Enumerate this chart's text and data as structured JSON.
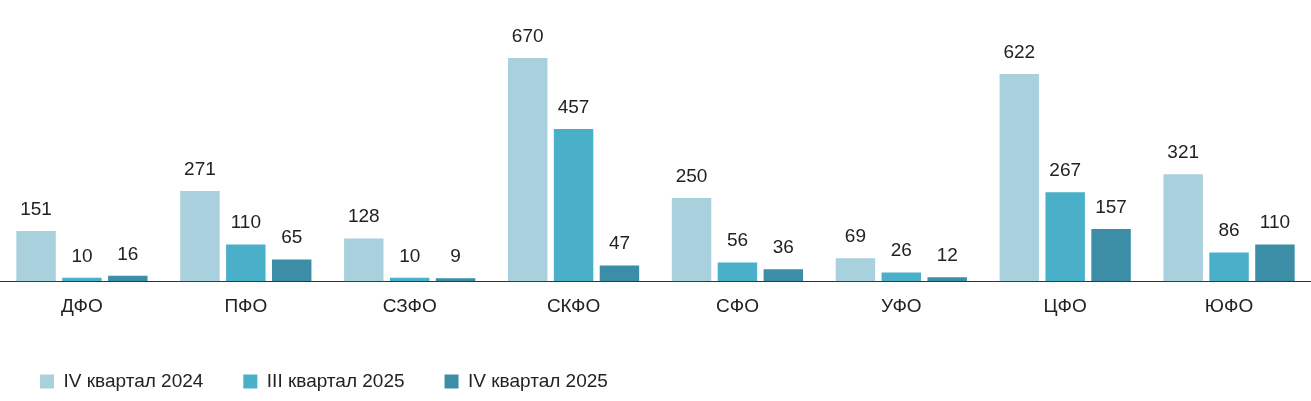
{
  "chart_data": {
    "type": "bar",
    "categories": [
      "ДФО",
      "ПФО",
      "СЗФО",
      "СКФО",
      "СФО",
      "УФО",
      "ЦФО",
      "ЮФО"
    ],
    "series": [
      {
        "name": "IV квартал 2024",
        "color": "#a8d1dd",
        "values": [
          151,
          271,
          128,
          670,
          250,
          69,
          622,
          321
        ]
      },
      {
        "name": "III квартал 2025",
        "color": "#4aafc8",
        "values": [
          10,
          110,
          10,
          457,
          56,
          26,
          267,
          86
        ]
      },
      {
        "name": "IV квартал 2025",
        "color": "#3b8ea5",
        "values": [
          16,
          65,
          9,
          47,
          36,
          12,
          157,
          110
        ]
      }
    ],
    "data_labels": true,
    "grid": false,
    "legend": "bottom left"
  }
}
